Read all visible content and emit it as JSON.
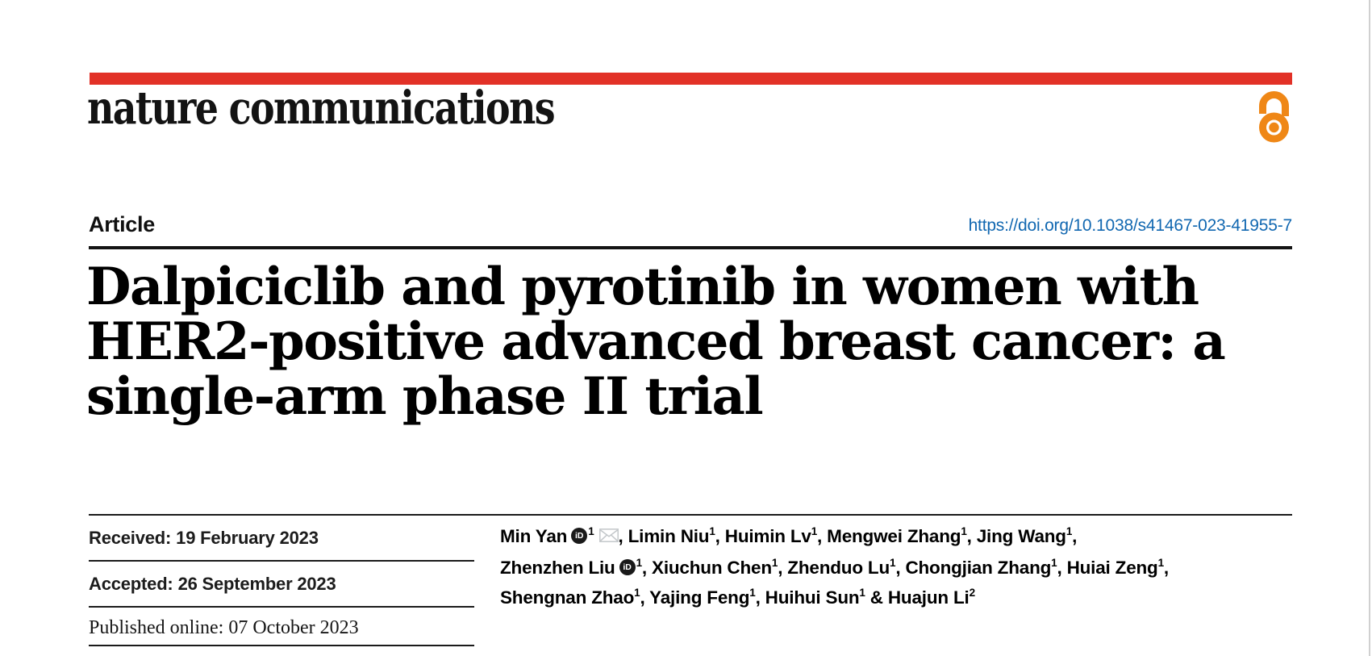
{
  "brand": {
    "journal_name": "nature communications",
    "bar_color": "#e23127",
    "open_access_color": "#ef8716"
  },
  "header": {
    "article_label": "Article",
    "doi": "https://doi.org/10.1038/s41467-023-41955-7",
    "doi_color": "#1268b1"
  },
  "title": {
    "lines": [
      "Dalpiciclib and pyrotinib in women with",
      "HER2-positive advanced breast cancer: a",
      "single-arm phase II trial"
    ]
  },
  "dates": [
    {
      "label": "Received:",
      "value": "19 February 2023"
    },
    {
      "label": "Accepted:",
      "value": "26 September 2023"
    },
    {
      "label": "Published online:",
      "value": "07 October 2023"
    }
  ],
  "authors": {
    "orcid_icon_text": "iD",
    "lines": [
      [
        {
          "name": "Min Yan",
          "orcid": true,
          "sup": "1",
          "email": true,
          "trail": ", "
        },
        {
          "name": "Limin Niu",
          "sup": "1",
          "trail": ", "
        },
        {
          "name": "Huimin Lv",
          "sup": "1",
          "trail": ", "
        },
        {
          "name": "Mengwei Zhang",
          "sup": "1",
          "trail": ", "
        },
        {
          "name": "Jing Wang",
          "sup": "1",
          "trail": ","
        }
      ],
      [
        {
          "name": "Zhenzhen Liu",
          "orcid": true,
          "sup": "1",
          "trail": ", "
        },
        {
          "name": "Xiuchun Chen",
          "sup": "1",
          "trail": ", "
        },
        {
          "name": "Zhenduo Lu",
          "sup": "1",
          "trail": ", "
        },
        {
          "name": "Chongjian Zhang",
          "sup": "1",
          "trail": ", "
        },
        {
          "name": "Huiai Zeng",
          "sup": "1",
          "trail": ","
        }
      ],
      [
        {
          "name": "Shengnan Zhao",
          "sup": "1",
          "trail": ", "
        },
        {
          "name": "Yajing Feng",
          "sup": "1",
          "trail": ", "
        },
        {
          "name": "Huihui Sun",
          "sup": "1",
          "trail": " & "
        },
        {
          "name": "Huajun Li",
          "sup": "2",
          "trail": ""
        }
      ]
    ]
  }
}
